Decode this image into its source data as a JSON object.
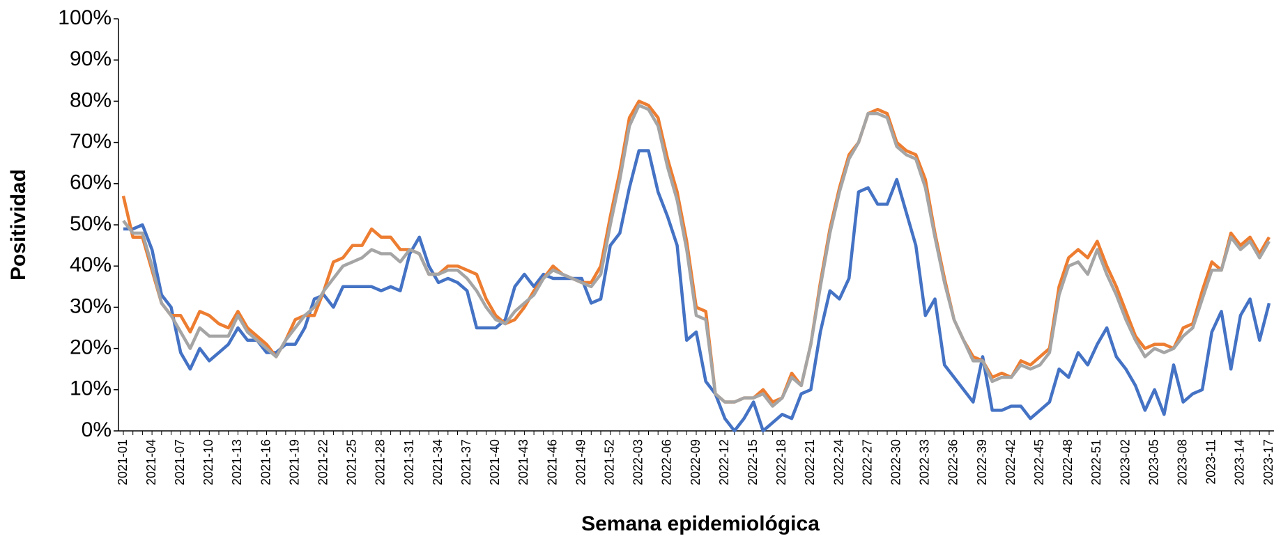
{
  "chart_data": {
    "type": "line",
    "x_label": "Semana epidemiológica",
    "y_label": "Positividad",
    "categories": [
      "2021-01",
      null,
      null,
      "2021-04",
      null,
      null,
      "2021-07",
      null,
      null,
      "2021-10",
      null,
      null,
      "2021-13",
      null,
      null,
      "2021-16",
      null,
      null,
      "2021-19",
      null,
      null,
      "2021-22",
      null,
      null,
      "2021-25",
      null,
      null,
      "2021-28",
      null,
      null,
      "2021-31",
      null,
      null,
      "2021-34",
      null,
      null,
      "2021-37",
      null,
      null,
      "2021-40",
      null,
      null,
      "2021-43",
      null,
      null,
      "2021-46",
      null,
      null,
      "2021-49",
      null,
      null,
      "2021-52",
      null,
      null,
      "2022-03",
      null,
      null,
      "2022-06",
      null,
      null,
      "2022-09",
      null,
      null,
      "2022-12",
      null,
      null,
      "2022-15",
      null,
      null,
      "2022-18",
      null,
      null,
      "2022-21",
      null,
      null,
      "2022-24",
      null,
      null,
      "2022-27",
      null,
      null,
      "2022-30",
      null,
      null,
      "2022-33",
      null,
      null,
      "2022-36",
      null,
      null,
      "2022-39",
      null,
      null,
      "2022-42",
      null,
      null,
      "2022-45",
      null,
      null,
      "2022-48",
      null,
      null,
      "2022-51",
      null,
      null,
      "2023-02",
      null,
      null,
      "2023-05",
      null,
      null,
      "2023-08",
      null,
      null,
      "2023-11",
      null,
      null,
      "2023-14",
      null,
      null,
      "2023-17"
    ],
    "series": [
      {
        "color": "#4472c4",
        "values": [
          49,
          49,
          50,
          44,
          33,
          30,
          19,
          15,
          20,
          17,
          19,
          21,
          25,
          22,
          22,
          19,
          19,
          21,
          21,
          25,
          32,
          33,
          30,
          35,
          35,
          35,
          35,
          34,
          35,
          34,
          43,
          47,
          40,
          36,
          37,
          36,
          34,
          25,
          25,
          25,
          27,
          35,
          38,
          35,
          38,
          37,
          37,
          37,
          37,
          31,
          32,
          45,
          48,
          59,
          68,
          68,
          58,
          52,
          45,
          22,
          24,
          12,
          9,
          3,
          0,
          3,
          7,
          0,
          2,
          4,
          3,
          9,
          10,
          24,
          34,
          32,
          37,
          58,
          59,
          55,
          55,
          61,
          53,
          45,
          28,
          32,
          16,
          13,
          10,
          7,
          18,
          5,
          5,
          6,
          6,
          3,
          5,
          7,
          15,
          13,
          19,
          16,
          21,
          25,
          18,
          15,
          11,
          5,
          10,
          4,
          16,
          7,
          9,
          10,
          24,
          29,
          15,
          28,
          32,
          22,
          31
        ]
      },
      {
        "color": "#ed7d31",
        "values": [
          57,
          47,
          47,
          39,
          31,
          28,
          28,
          24,
          29,
          28,
          26,
          25,
          29,
          25,
          23,
          21,
          18,
          22,
          27,
          28,
          28,
          34,
          41,
          42,
          45,
          45,
          49,
          47,
          47,
          44,
          44,
          43,
          38,
          38,
          40,
          40,
          39,
          38,
          32,
          28,
          26,
          27,
          30,
          34,
          37,
          40,
          38,
          37,
          36,
          36,
          40,
          52,
          63,
          76,
          80,
          79,
          76,
          66,
          58,
          46,
          30,
          29,
          9,
          7,
          7,
          8,
          8,
          10,
          7,
          8,
          14,
          11,
          21,
          36,
          49,
          59,
          67,
          70,
          77,
          78,
          77,
          70,
          68,
          67,
          61,
          48,
          37,
          27,
          22,
          18,
          17,
          13,
          14,
          13,
          17,
          16,
          18,
          20,
          35,
          42,
          44,
          42,
          46,
          40,
          35,
          29,
          23,
          20,
          21,
          21,
          20,
          25,
          26,
          34,
          41,
          39,
          48,
          45,
          47,
          43,
          47
        ]
      },
      {
        "color": "#a5a5a5",
        "values": [
          51,
          48,
          48,
          40,
          31,
          28,
          24,
          20,
          25,
          23,
          23,
          23,
          28,
          24,
          22,
          20,
          18,
          22,
          25,
          28,
          30,
          34,
          37,
          40,
          41,
          42,
          44,
          43,
          43,
          41,
          44,
          43,
          38,
          38,
          39,
          39,
          37,
          34,
          30,
          27,
          26,
          29,
          31,
          33,
          37,
          39,
          38,
          37,
          36,
          35,
          38,
          50,
          61,
          74,
          79,
          78,
          74,
          64,
          56,
          44,
          28,
          27,
          9,
          7,
          7,
          8,
          8,
          9,
          6,
          8,
          13,
          11,
          21,
          35,
          48,
          58,
          66,
          70,
          77,
          77,
          76,
          69,
          67,
          66,
          59,
          47,
          36,
          27,
          22,
          17,
          17,
          12,
          13,
          13,
          16,
          15,
          16,
          19,
          33,
          40,
          41,
          38,
          44,
          38,
          33,
          27,
          22,
          18,
          20,
          19,
          20,
          23,
          25,
          32,
          39,
          39,
          47,
          44,
          46,
          42,
          46
        ]
      }
    ],
    "ylim": [
      0,
      100
    ],
    "yticks": [
      {
        "value": 0,
        "label": "0%"
      },
      {
        "value": 10,
        "label": "10%"
      },
      {
        "value": 20,
        "label": "20%"
      },
      {
        "value": 30,
        "label": "30%"
      },
      {
        "value": 40,
        "label": "40%"
      },
      {
        "value": 50,
        "label": "50%"
      },
      {
        "value": 60,
        "label": "60%"
      },
      {
        "value": 70,
        "label": "70%"
      },
      {
        "value": 80,
        "label": "80%"
      },
      {
        "value": 90,
        "label": "90%"
      },
      {
        "value": 100,
        "label": "100%"
      }
    ]
  }
}
